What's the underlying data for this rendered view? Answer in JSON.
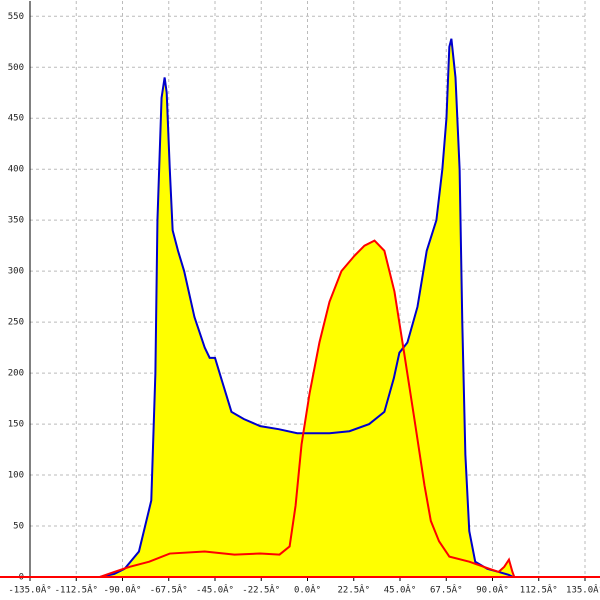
{
  "chart_data": {
    "type": "area",
    "xlim": [
      -135,
      135
    ],
    "ylim": [
      0,
      565
    ],
    "xticks": [
      {
        "value": -135,
        "label": "-135.0Â°"
      },
      {
        "value": -112.5,
        "label": "-112.5Â°"
      },
      {
        "value": -90,
        "label": "-90.0Â°"
      },
      {
        "value": -67.5,
        "label": "-67.5Â°"
      },
      {
        "value": -45,
        "label": "-45.0Â°"
      },
      {
        "value": -22.5,
        "label": "-22.5Â°"
      },
      {
        "value": 0,
        "label": "0.0Â°"
      },
      {
        "value": 22.5,
        "label": "22.5Â°"
      },
      {
        "value": 45,
        "label": "45.0Â°"
      },
      {
        "value": 67.5,
        "label": "67.5Â°"
      },
      {
        "value": 90,
        "label": "90.0Â°"
      },
      {
        "value": 112.5,
        "label": "112.5Â°"
      },
      {
        "value": 135,
        "label": "135.0Â°"
      }
    ],
    "yticks": [
      0,
      50,
      100,
      150,
      200,
      250,
      300,
      350,
      400,
      450,
      500,
      550
    ],
    "grid": true,
    "fill": "#ffff00",
    "axis_color": "#ff0000",
    "series": [
      {
        "color": "#0000cc",
        "x": [
          -101,
          -94,
          -89,
          -82,
          -76,
          -74,
          -73,
          -71,
          -69.5,
          -68.5,
          -67,
          -65.6,
          -63,
          -60,
          -55,
          -50,
          -47.6,
          -45,
          -42,
          -37,
          -31,
          -23,
          -14,
          -5,
          0,
          10.7,
          20.4,
          30,
          37.4,
          42,
          44.7,
          48.6,
          53.5,
          58,
          62.7,
          65.6,
          67.6,
          69,
          70,
          72,
          74,
          75.3,
          76.8,
          78.7,
          81.6,
          87.5,
          93,
          98,
          100
        ],
        "values": [
          0,
          3,
          8,
          25,
          75,
          200,
          350,
          470,
          490,
          475,
          400,
          340,
          320,
          300,
          255,
          225,
          215,
          215,
          195,
          162,
          155,
          148,
          145,
          141,
          141,
          141,
          143,
          150,
          162,
          195,
          220,
          230,
          265,
          320,
          350,
          400,
          450,
          520,
          528,
          490,
          400,
          250,
          120,
          45,
          15,
          8,
          5,
          2,
          0
        ]
      },
      {
        "color": "#ff0000",
        "x": [
          -101,
          -94,
          -86.5,
          -77,
          -67,
          -50,
          -35.5,
          -23,
          -13.6,
          -8.7,
          -5.8,
          -2.9,
          1,
          5.8,
          10.7,
          16.5,
          22.8,
          27.7,
          32.6,
          37.4,
          42.3,
          47,
          52,
          56.9,
          60,
          64,
          69,
          78.7,
          88.5,
          93,
          95.7,
          98,
          99.7,
          100.6
        ],
        "values": [
          0,
          5,
          10,
          15,
          23,
          25,
          22,
          23,
          22,
          30,
          70,
          130,
          180,
          230,
          270,
          300,
          315,
          325,
          330,
          320,
          280,
          220,
          155,
          90,
          55,
          35,
          20,
          15,
          8,
          5,
          10,
          17,
          5,
          0
        ]
      }
    ]
  }
}
